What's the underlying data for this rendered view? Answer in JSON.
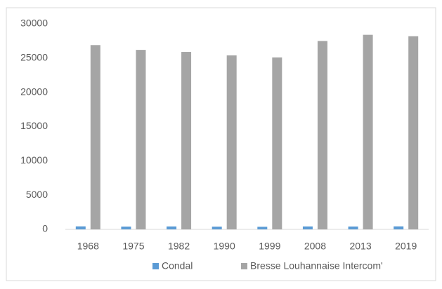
{
  "chart_data": {
    "type": "bar",
    "categories": [
      "1968",
      "1975",
      "1982",
      "1990",
      "1999",
      "2008",
      "2013",
      "2019"
    ],
    "series": [
      {
        "name": "Condal",
        "color": "#5b9bd5",
        "values": [
          440,
          410,
          430,
          400,
          380,
          430,
          420,
          440
        ]
      },
      {
        "name": "Bresse Louhannaise Intercom'",
        "color": "#a5a5a5",
        "values": [
          26900,
          26200,
          25900,
          25400,
          25100,
          27500,
          28400,
          28200
        ]
      }
    ],
    "ylim": [
      0,
      30000
    ],
    "yticks": [
      0,
      5000,
      10000,
      15000,
      20000,
      25000,
      30000
    ],
    "grid": false,
    "legend": "bottom"
  }
}
